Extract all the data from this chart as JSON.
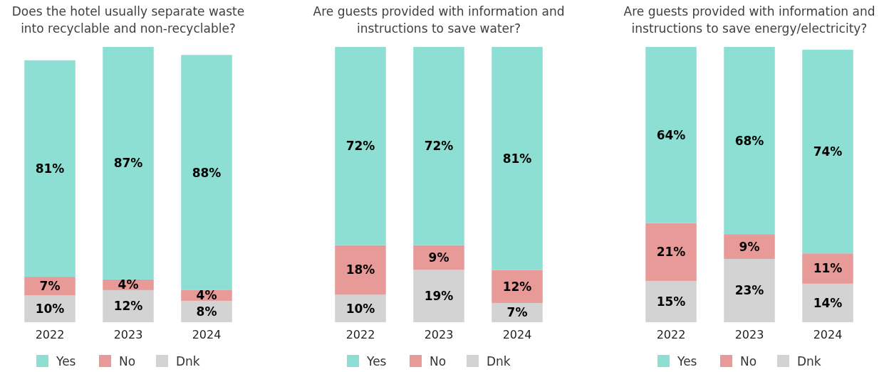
{
  "chart_data": [
    {
      "type": "bar",
      "title": "Does the hotel usually separate waste into recyclable and non-recyclable?",
      "categories": [
        "2022",
        "2023",
        "2024"
      ],
      "stacked": true,
      "legend": "bottom",
      "series": [
        {
          "name": "Dnk",
          "color": "#d3d3d3",
          "values": [
            10,
            12,
            8
          ],
          "value_labels": [
            "10%",
            "12%",
            "8%"
          ]
        },
        {
          "name": "No",
          "color": "#e89a98",
          "values": [
            7,
            4,
            4
          ],
          "value_labels": [
            "7%",
            "4%",
            "4%"
          ]
        },
        {
          "name": "Yes",
          "color": "#8ddfd3",
          "values": [
            81,
            87,
            88
          ],
          "value_labels": [
            "81%",
            "87%",
            "88%"
          ]
        }
      ]
    },
    {
      "type": "bar",
      "title": "Are guests provided with information and instructions to save water?",
      "categories": [
        "2022",
        "2023",
        "2024"
      ],
      "stacked": true,
      "legend": "bottom",
      "series": [
        {
          "name": "Dnk",
          "color": "#d3d3d3",
          "values": [
            10,
            19,
            7
          ],
          "value_labels": [
            "10%",
            "19%",
            "7%"
          ]
        },
        {
          "name": "No",
          "color": "#e89a98",
          "values": [
            18,
            9,
            12
          ],
          "value_labels": [
            "18%",
            "9%",
            "12%"
          ]
        },
        {
          "name": "Yes",
          "color": "#8ddfd3",
          "values": [
            72,
            72,
            81
          ],
          "value_labels": [
            "72%",
            "72%",
            "81%"
          ]
        }
      ]
    },
    {
      "type": "bar",
      "title": "Are guests provided with information and instructions to save energy/electricity?",
      "categories": [
        "2022",
        "2023",
        "2024"
      ],
      "stacked": true,
      "legend": "bottom",
      "series": [
        {
          "name": "Dnk",
          "color": "#d3d3d3",
          "values": [
            15,
            23,
            14
          ],
          "value_labels": [
            "15%",
            "23%",
            "14%"
          ]
        },
        {
          "name": "No",
          "color": "#e89a98",
          "values": [
            21,
            9,
            11
          ],
          "value_labels": [
            "21%",
            "9%",
            "11%"
          ]
        },
        {
          "name": "Yes",
          "color": "#8ddfd3",
          "values": [
            64,
            68,
            74
          ],
          "value_labels": [
            "64%",
            "68%",
            "74%"
          ]
        }
      ]
    }
  ]
}
